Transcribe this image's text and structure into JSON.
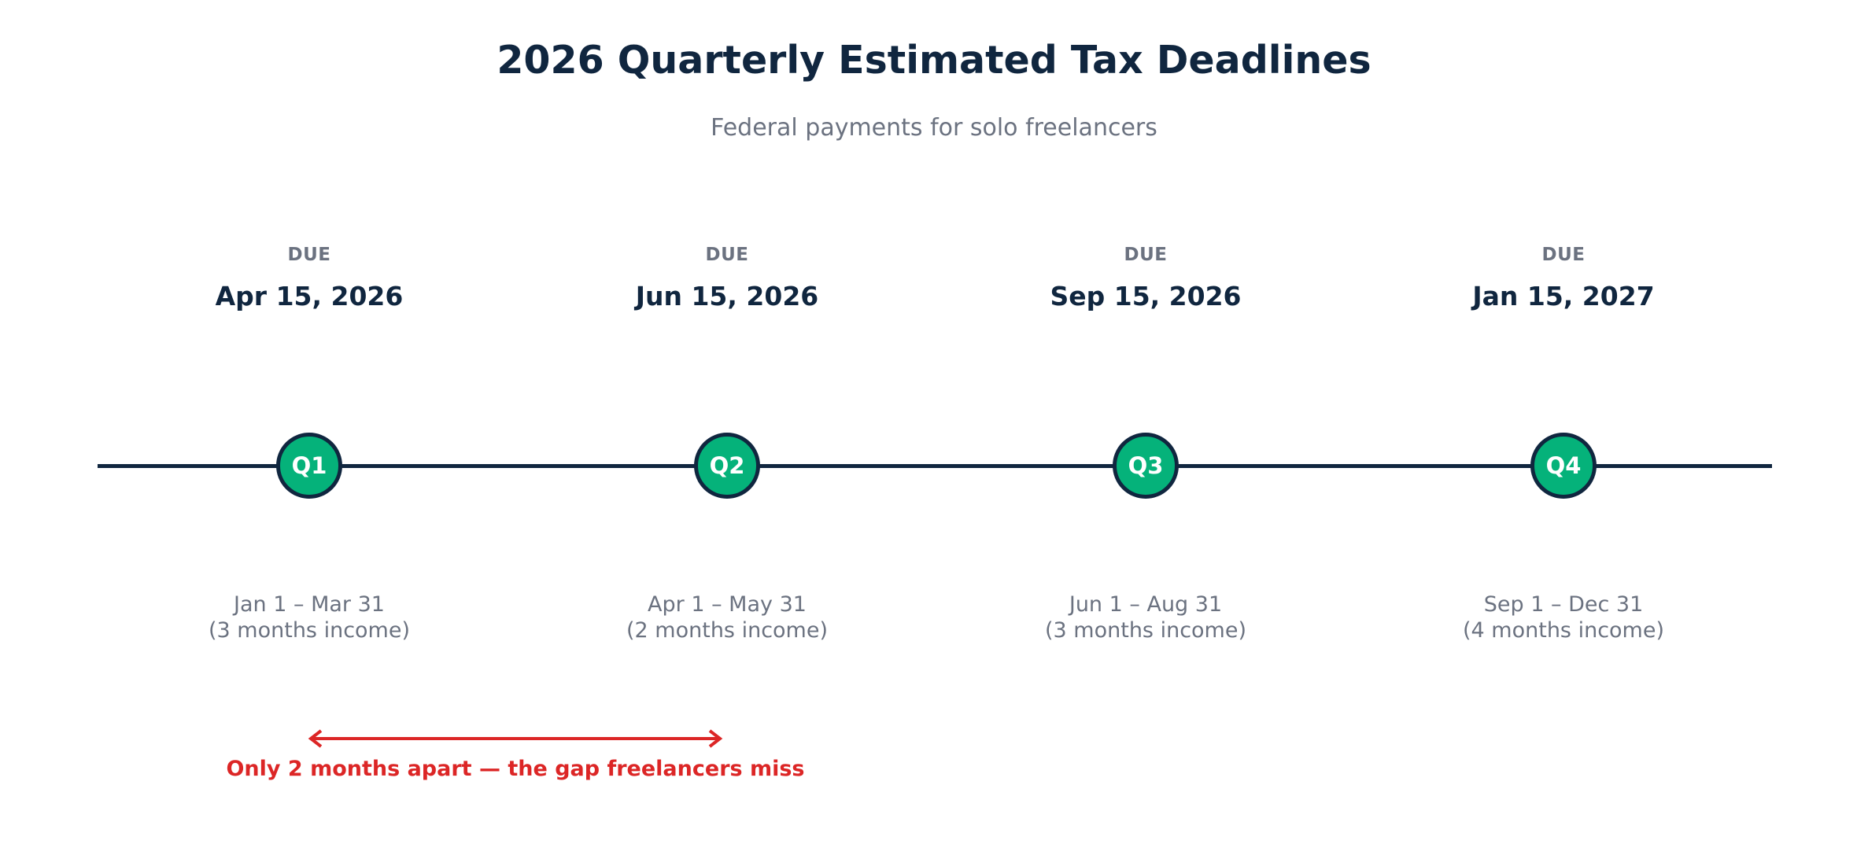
{
  "header": {
    "title": "2026 Quarterly Estimated Tax Deadlines",
    "subtitle": "Federal payments for solo freelancers"
  },
  "colors": {
    "navy": "#10263f",
    "green": "#05b27a",
    "gray": "#6b7280",
    "red": "#dc2626"
  },
  "milestones": [
    {
      "due_label": "DUE",
      "date": "Apr 15, 2026",
      "quarter": "Q1",
      "period": "Jan 1 – Mar 31",
      "months": "(3 months income)"
    },
    {
      "due_label": "DUE",
      "date": "Jun 15, 2026",
      "quarter": "Q2",
      "period": "Apr 1 – May 31",
      "months": "(2 months income)"
    },
    {
      "due_label": "DUE",
      "date": "Sep 15, 2026",
      "quarter": "Q3",
      "period": "Jun 1 – Aug 31",
      "months": "(3 months income)"
    },
    {
      "due_label": "DUE",
      "date": "Jan 15, 2027",
      "quarter": "Q4",
      "period": "Sep 1 – Dec 31",
      "months": "(4 months income)"
    }
  ],
  "annotation": {
    "text": "Only 2 months apart — the gap freelancers miss"
  }
}
